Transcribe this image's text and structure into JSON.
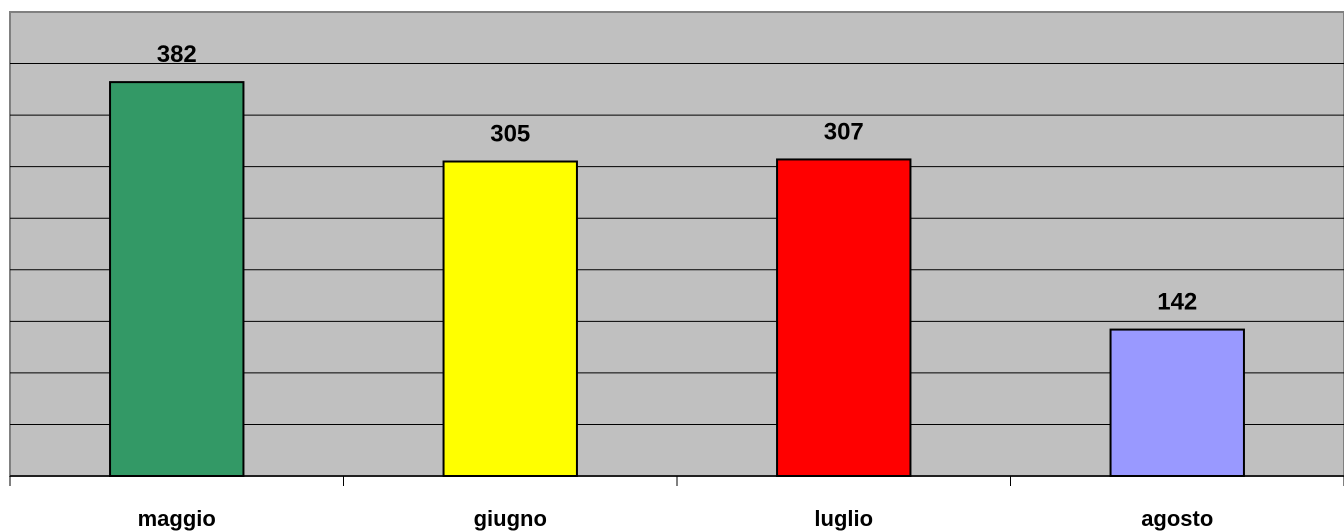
{
  "chart_data": {
    "type": "bar",
    "title": "",
    "xlabel": "",
    "ylabel": "",
    "categories": [
      "maggio",
      "giugno",
      "luglio",
      "agosto"
    ],
    "values": [
      382,
      305,
      307,
      142
    ],
    "data_labels": [
      "382",
      "305",
      "307",
      "142"
    ],
    "bar_colors": [
      "#339966",
      "#ffff00",
      "#ff0000",
      "#9999ff"
    ],
    "ylim": [
      0,
      450
    ],
    "ytick_step": 50,
    "grid": true,
    "legend": "none",
    "plot_background": "#c0c0c0",
    "gridline_color": "#000000",
    "bar_edge_color": "#000000"
  }
}
